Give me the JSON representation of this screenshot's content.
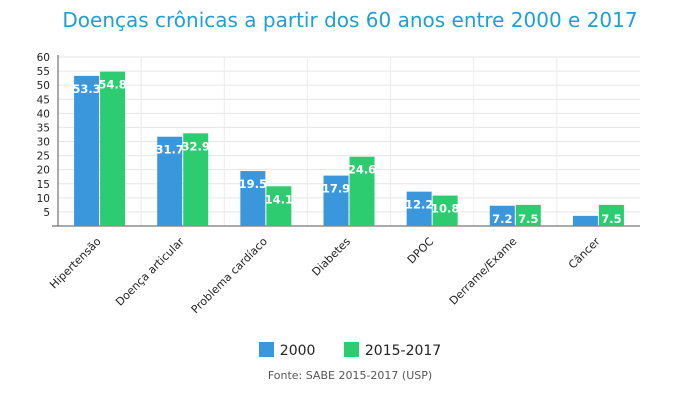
{
  "colors": {
    "series_2000": "#3a97dc",
    "series_2015": "#2ecc71",
    "title": "#1ea0d6"
  },
  "legend": {
    "item_2000": "2000",
    "item_2015": "2015-2017"
  },
  "source": "Fonte: SABE 2015-2017 (USP)",
  "chart_data": {
    "type": "bar",
    "title": "Doenças crônicas a partir dos 60 anos entre 2000 e 2017",
    "xlabel": "",
    "ylabel": "",
    "ylim": [
      0,
      60
    ],
    "yticks": [
      5,
      10,
      15,
      20,
      25,
      30,
      35,
      40,
      45,
      50,
      55,
      60
    ],
    "grid": true,
    "legend_position": "bottom",
    "categories": [
      "Hipertensão",
      "Doença articular",
      "Problema cardíaco",
      "Diabetes",
      "DPOC",
      "Derrame/Exame",
      "Câncer"
    ],
    "series": [
      {
        "name": "2000",
        "values": [
          53.3,
          31.7,
          19.5,
          17.9,
          12.2,
          7.2,
          3.6
        ]
      },
      {
        "name": "2015-2017",
        "values": [
          54.8,
          32.9,
          14.1,
          24.6,
          10.8,
          7.5,
          7.5
        ]
      }
    ],
    "data_labels": [
      [
        "53.3",
        "31.7",
        "19.5",
        "17.9",
        "12.2",
        "7.2",
        ""
      ],
      [
        "54.8",
        "32.9",
        "14.1",
        "24.6",
        "10.8",
        "7.5",
        "7.5"
      ]
    ]
  }
}
